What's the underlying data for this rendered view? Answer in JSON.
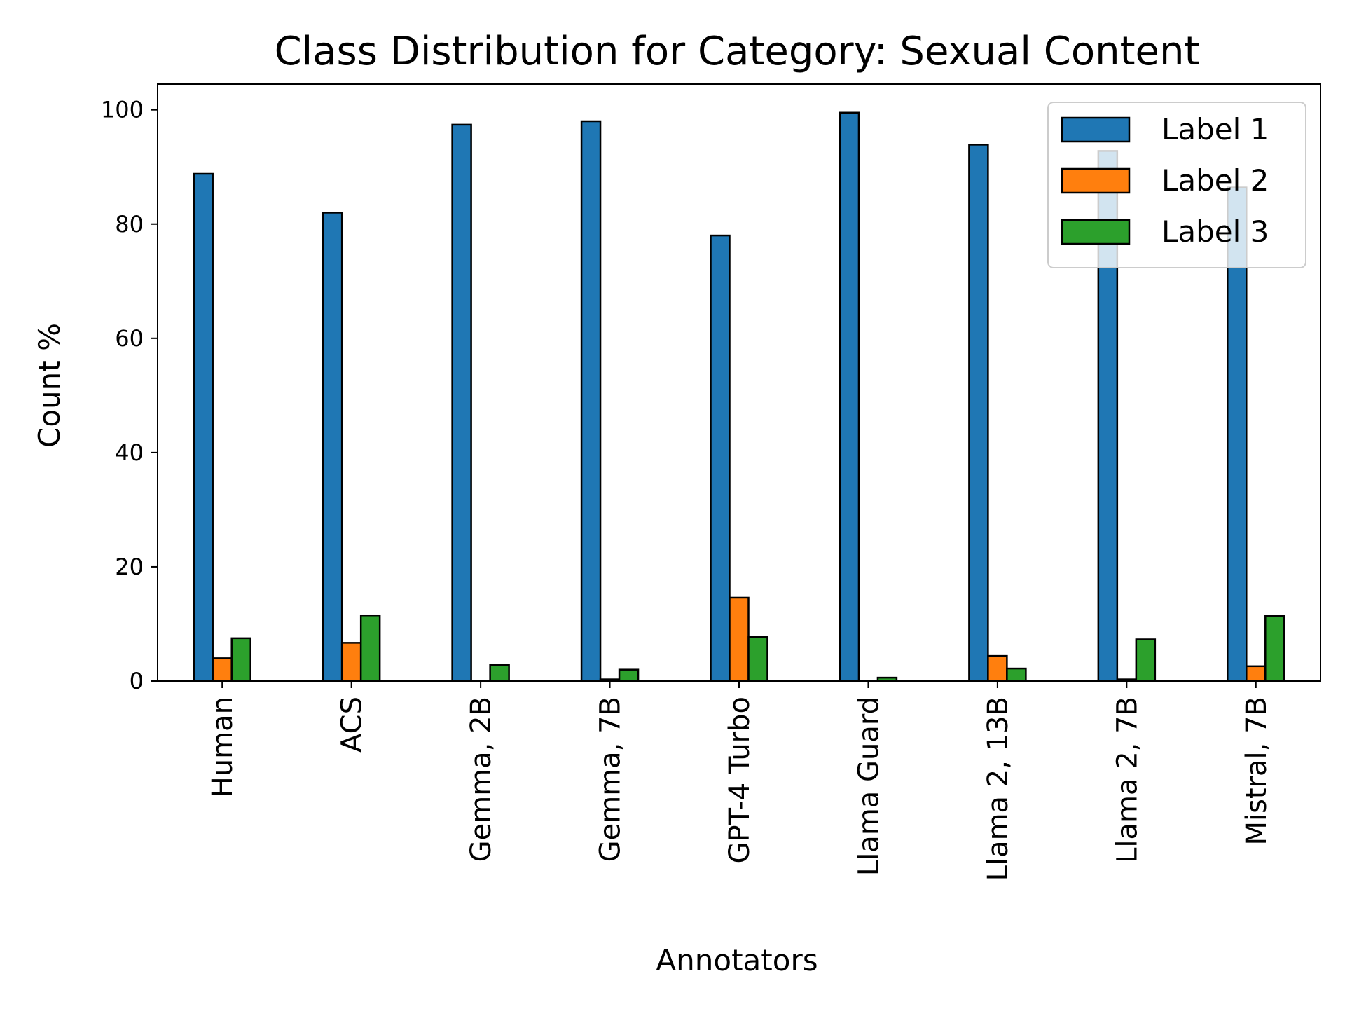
{
  "chart_data": {
    "type": "bar",
    "title": "Class Distribution for Category: Sexual Content",
    "xlabel": "Annotators",
    "ylabel": "Count %",
    "ylim": [
      0,
      104.5
    ],
    "yticks": [
      0,
      20,
      40,
      60,
      80,
      100
    ],
    "categories": [
      "Human",
      "ACS",
      "Gemma, 2B",
      "Gemma, 7B",
      "GPT-4 Turbo",
      "Llama Guard",
      "Llama 2, 13B",
      "Llama 2, 7B",
      "Mistral, 7B"
    ],
    "series": [
      {
        "name": "Label 1",
        "color": "#1f77b4",
        "values": [
          88.8,
          82.0,
          97.4,
          98.0,
          78.0,
          99.5,
          93.9,
          92.8,
          86.4
        ]
      },
      {
        "name": "Label 2",
        "color": "#ff7f0e",
        "values": [
          4.0,
          6.7,
          0.0,
          0.3,
          14.6,
          0.0,
          4.4,
          0.3,
          2.6
        ]
      },
      {
        "name": "Label 3",
        "color": "#2ca02c",
        "values": [
          7.5,
          11.5,
          2.8,
          2.0,
          7.7,
          0.6,
          2.2,
          7.3,
          11.4
        ]
      }
    ],
    "legend": {
      "position": "top-right"
    },
    "grid": false
  }
}
